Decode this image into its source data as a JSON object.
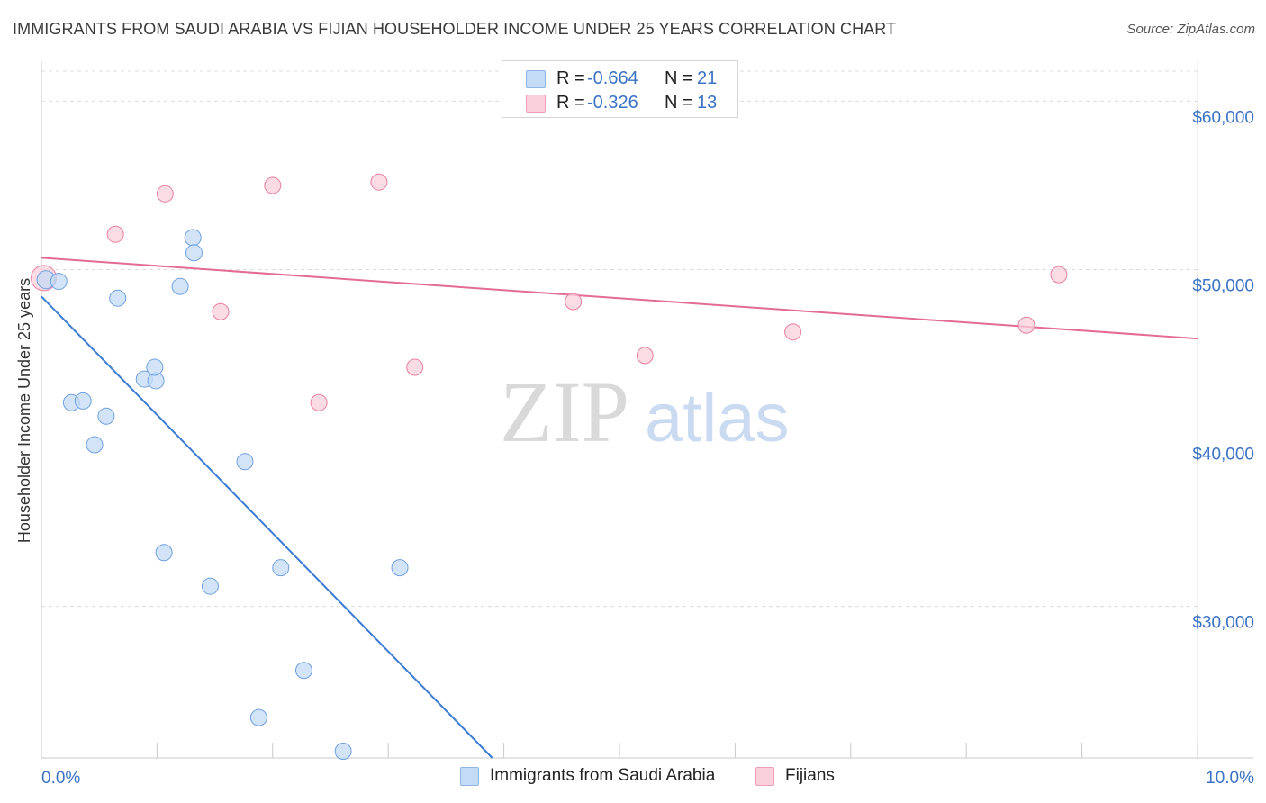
{
  "title": "IMMIGRANTS FROM SAUDI ARABIA VS FIJIAN HOUSEHOLDER INCOME UNDER 25 YEARS CORRELATION CHART",
  "source": "Source: ZipAtlas.com",
  "watermark": {
    "zip": "ZIP",
    "atlas": "atlas"
  },
  "legend": {
    "rows": [
      {
        "r_label": "R = ",
        "r_value": "-0.664",
        "n_label": "N = ",
        "n_value": "21",
        "color": "#b7d1f3"
      },
      {
        "r_label": "R = ",
        "r_value": "-0.326",
        "n_label": "N = ",
        "n_value": "13",
        "color": "#f8c3d3"
      }
    ]
  },
  "bottom_legend": {
    "saudi": "Immigrants from Saudi Arabia",
    "fijians": "Fijians"
  },
  "chart_data": {
    "type": "scatter",
    "title": "IMMIGRANTS FROM SAUDI ARABIA VS FIJIAN HOUSEHOLDER INCOME UNDER 25 YEARS CORRELATION CHART",
    "xlabel": "",
    "ylabel": "Householder Income Under 25 years",
    "xlim": [
      0,
      10
    ],
    "ylim": [
      21000,
      62000
    ],
    "x_tick_labels": [
      {
        "x": 0,
        "label": "0.0%"
      },
      {
        "x": 10,
        "label": "10.0%"
      }
    ],
    "y_ticks": [
      {
        "y": 30000,
        "label": "$30,000"
      },
      {
        "y": 40000,
        "label": "$40,000"
      },
      {
        "y": 50000,
        "label": "$50,000"
      },
      {
        "y": 60000,
        "label": "$60,000"
      }
    ],
    "grid": true,
    "legend_position": "top-center",
    "series": [
      {
        "name": "Immigrants from Saudi Arabia",
        "color": "#6fa0e0",
        "fill": "#c4dbf5",
        "points": [
          {
            "x": 0.04,
            "y": 49400
          },
          {
            "x": 0.15,
            "y": 49300
          },
          {
            "x": 0.66,
            "y": 48300
          },
          {
            "x": 1.31,
            "y": 51900
          },
          {
            "x": 1.32,
            "y": 51000
          },
          {
            "x": 1.2,
            "y": 49000
          },
          {
            "x": 0.89,
            "y": 43500
          },
          {
            "x": 0.99,
            "y": 43400
          },
          {
            "x": 0.98,
            "y": 44200
          },
          {
            "x": 0.26,
            "y": 42100
          },
          {
            "x": 0.36,
            "y": 42200
          },
          {
            "x": 0.56,
            "y": 41300
          },
          {
            "x": 0.46,
            "y": 39600
          },
          {
            "x": 1.76,
            "y": 38600
          },
          {
            "x": 1.06,
            "y": 33200
          },
          {
            "x": 2.07,
            "y": 32300
          },
          {
            "x": 3.1,
            "y": 32300
          },
          {
            "x": 1.46,
            "y": 31200
          },
          {
            "x": 2.27,
            "y": 26200
          },
          {
            "x": 1.88,
            "y": 23400
          },
          {
            "x": 2.61,
            "y": 21400
          }
        ],
        "trend": {
          "x0": 0,
          "y0": 48400,
          "x1": 3.9,
          "y1": 21000
        }
      },
      {
        "name": "Fijians",
        "color": "#e97fa0",
        "fill": "#f9d0dc",
        "points": [
          {
            "x": 0.02,
            "y": 49500
          },
          {
            "x": 1.07,
            "y": 54500
          },
          {
            "x": 2.0,
            "y": 55000
          },
          {
            "x": 2.92,
            "y": 55200
          },
          {
            "x": 0.64,
            "y": 52100
          },
          {
            "x": 1.55,
            "y": 47500
          },
          {
            "x": 4.6,
            "y": 48100
          },
          {
            "x": 2.4,
            "y": 42100
          },
          {
            "x": 3.23,
            "y": 44200
          },
          {
            "x": 5.22,
            "y": 44900
          },
          {
            "x": 6.5,
            "y": 46300
          },
          {
            "x": 8.52,
            "y": 46700
          },
          {
            "x": 8.8,
            "y": 49700
          }
        ],
        "trend": {
          "x0": 0,
          "y0": 50700,
          "x1": 10,
          "y1": 45900
        }
      }
    ]
  }
}
